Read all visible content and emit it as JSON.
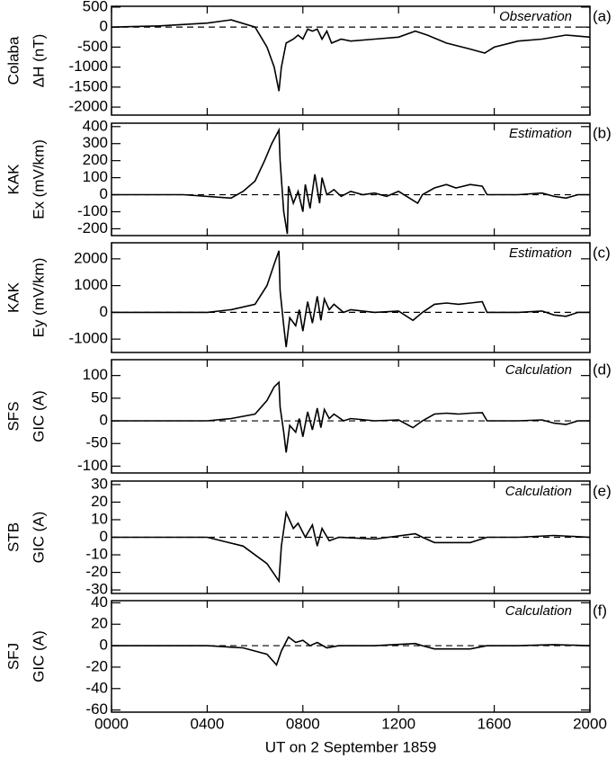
{
  "chart_data": [
    {
      "type": "line",
      "ylabel": [
        "Colaba",
        "ΔH (nT)"
      ],
      "annotation": "Observation",
      "panel": "(a)",
      "color": "#000000",
      "hline": 0,
      "ylim": [
        -2200,
        520
      ],
      "yticks": [
        500,
        0,
        -500,
        -1000,
        -1500,
        -2000
      ],
      "x": [
        0,
        2,
        4,
        5,
        6,
        6.5,
        6.8,
        7.0,
        7.1,
        7.3,
        7.6,
        7.8,
        8.0,
        8.2,
        8.4,
        8.6,
        8.8,
        9.0,
        9.2,
        9.6,
        10,
        11,
        12,
        12.7,
        13.2,
        14,
        15,
        15.6,
        16,
        17,
        18,
        19,
        20
      ],
      "values": [
        0,
        30,
        100,
        180,
        0,
        -500,
        -1000,
        -1600,
        -1000,
        -400,
        -300,
        -200,
        -300,
        -50,
        -100,
        -50,
        -300,
        -100,
        -400,
        -300,
        -350,
        -300,
        -250,
        -100,
        -200,
        -400,
        -550,
        -650,
        -500,
        -350,
        -300,
        -200,
        -250
      ]
    },
    {
      "type": "line",
      "ylabel": [
        "KAK",
        "Ex (mV/km)"
      ],
      "annotation": "Estimation",
      "panel": "(b)",
      "color": "#000000",
      "hline": 0,
      "ylim": [
        -240,
        420
      ],
      "yticks": [
        400,
        300,
        200,
        100,
        0,
        -100,
        -200
      ],
      "x": [
        0,
        3,
        5,
        5.5,
        6,
        6.4,
        6.7,
        7.0,
        7.05,
        7.2,
        7.35,
        7.4,
        7.6,
        7.8,
        8.0,
        8.1,
        8.3,
        8.5,
        8.7,
        8.8,
        9.0,
        9.3,
        9.6,
        10,
        10.5,
        11,
        11.5,
        12,
        12.8,
        13,
        13.5,
        14,
        14.4,
        15,
        15.5,
        15.7,
        17,
        18,
        18.5,
        19,
        19.5,
        20
      ],
      "values": [
        0,
        0,
        -20,
        20,
        80,
        200,
        300,
        380,
        200,
        -100,
        -230,
        50,
        -50,
        20,
        -100,
        60,
        -80,
        120,
        -50,
        100,
        0,
        30,
        -10,
        20,
        0,
        10,
        -10,
        20,
        -50,
        0,
        40,
        60,
        40,
        60,
        50,
        0,
        0,
        10,
        -10,
        -20,
        0,
        0
      ]
    },
    {
      "type": "line",
      "ylabel": [
        "KAK",
        "Ey (mV/km)"
      ],
      "annotation": "Estimation",
      "panel": "(c)",
      "color": "#000000",
      "hline": 0,
      "ylim": [
        -1500,
        2600
      ],
      "yticks": [
        2000,
        1000,
        0,
        -1000
      ],
      "x": [
        0,
        4,
        5,
        6,
        6.5,
        6.8,
        7.0,
        7.05,
        7.2,
        7.3,
        7.45,
        7.7,
        7.85,
        8.0,
        8.2,
        8.4,
        8.6,
        8.75,
        8.9,
        9.1,
        9.3,
        9.7,
        10,
        11,
        12,
        12.6,
        13,
        13.5,
        14,
        14.5,
        15,
        15.5,
        15.7,
        17,
        18,
        18.5,
        19,
        19.5,
        20
      ],
      "values": [
        0,
        0,
        100,
        300,
        1000,
        1800,
        2300,
        800,
        -500,
        -1300,
        -200,
        -500,
        100,
        -700,
        400,
        -400,
        600,
        -300,
        500,
        100,
        300,
        0,
        100,
        0,
        50,
        -300,
        0,
        300,
        350,
        300,
        350,
        400,
        0,
        0,
        50,
        -100,
        -150,
        0,
        0
      ]
    },
    {
      "type": "line",
      "ylabel": [
        "SFS",
        "GIC (A)"
      ],
      "annotation": "Calculation",
      "panel": "(d)",
      "color": "#000000",
      "hline": 0,
      "ylim": [
        -115,
        135
      ],
      "yticks": [
        100,
        50,
        0,
        -50,
        -100
      ],
      "x": [
        0,
        4,
        5,
        6,
        6.5,
        6.8,
        7.0,
        7.05,
        7.2,
        7.3,
        7.45,
        7.7,
        7.85,
        8.0,
        8.2,
        8.4,
        8.6,
        8.75,
        8.9,
        9.1,
        9.3,
        9.7,
        10,
        11,
        12,
        12.6,
        13,
        13.5,
        14,
        14.5,
        15,
        15.5,
        15.7,
        17,
        18,
        18.5,
        19,
        19.5,
        20
      ],
      "values": [
        0,
        0,
        5,
        15,
        45,
        75,
        85,
        30,
        -25,
        -70,
        -10,
        -25,
        5,
        -35,
        20,
        -20,
        28,
        -15,
        25,
        5,
        15,
        0,
        5,
        0,
        2,
        -15,
        0,
        15,
        17,
        15,
        17,
        18,
        0,
        0,
        2,
        -5,
        -8,
        0,
        0
      ]
    },
    {
      "type": "line",
      "ylabel": [
        "STB",
        "GIC (A)"
      ],
      "annotation": "Calculation",
      "panel": "(e)",
      "color": "#000000",
      "hline": 0,
      "ylim": [
        -32,
        32
      ],
      "yticks": [
        30,
        20,
        10,
        0,
        -10,
        -20,
        -30
      ],
      "x": [
        0,
        4,
        5.5,
        6.5,
        7.0,
        7.1,
        7.3,
        7.6,
        7.8,
        8.1,
        8.4,
        8.6,
        8.8,
        9.1,
        9.5,
        11,
        12.7,
        13,
        13.5,
        15,
        15.7,
        17,
        18.5,
        20
      ],
      "values": [
        0,
        0,
        -5,
        -15,
        -25,
        -5,
        14,
        5,
        8,
        0,
        7,
        -5,
        5,
        -2,
        0,
        -1,
        2,
        0,
        -3,
        -3,
        0,
        0,
        1,
        0
      ]
    },
    {
      "type": "line",
      "ylabel": [
        "SFJ",
        "GIC (A)"
      ],
      "annotation": "Calculation",
      "panel": "(f)",
      "color": "#000000",
      "hline": 0,
      "ylim": [
        -62,
        42
      ],
      "yticks": [
        40,
        20,
        0,
        -20,
        -40,
        -60
      ],
      "x": [
        0,
        4,
        5.5,
        6.5,
        6.9,
        7.1,
        7.4,
        7.7,
        8.0,
        8.3,
        8.6,
        9.0,
        9.5,
        11,
        12.7,
        13,
        13.5,
        15,
        15.7,
        17,
        18.5,
        20
      ],
      "values": [
        0,
        0,
        -2,
        -8,
        -18,
        -5,
        8,
        3,
        5,
        0,
        3,
        -2,
        0,
        0,
        2,
        0,
        -3,
        -3,
        0,
        0,
        1,
        0
      ],
      "xlim": [
        0,
        20
      ],
      "xticks": [
        {
          "value": 0,
          "label": "0000"
        },
        {
          "value": 4,
          "label": "0400"
        },
        {
          "value": 8,
          "label": "0800"
        },
        {
          "value": 12,
          "label": "1200"
        },
        {
          "value": 16,
          "label": "1600"
        },
        {
          "value": 20,
          "label": "2000"
        }
      ],
      "xlabel": "UT on 2 September 1859"
    }
  ]
}
